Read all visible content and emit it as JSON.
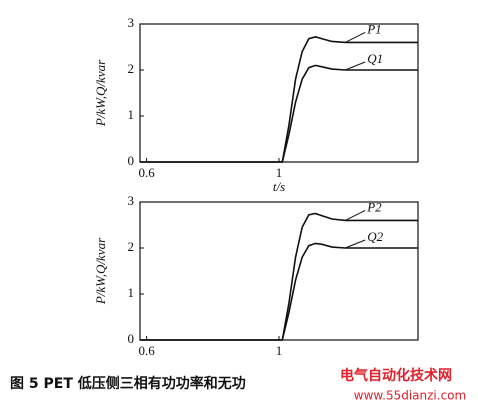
{
  "chart_data": [
    {
      "type": "line",
      "xlabel": "t/s",
      "ylabel": "P/kW,Q/kvar",
      "x": [
        0.58,
        1.0,
        1.01,
        1.03,
        1.05,
        1.07,
        1.09,
        1.11,
        1.13,
        1.16,
        1.2,
        1.25,
        1.42
      ],
      "series": [
        {
          "name": "P1",
          "color": "#111111",
          "values": [
            0,
            0,
            0,
            0.8,
            1.8,
            2.4,
            2.68,
            2.72,
            2.68,
            2.62,
            2.6,
            2.6,
            2.6
          ]
        },
        {
          "name": "Q1",
          "color": "#111111",
          "values": [
            0,
            0,
            0,
            0.6,
            1.3,
            1.8,
            2.05,
            2.1,
            2.07,
            2.02,
            2.0,
            2.0,
            2.0
          ]
        }
      ],
      "xlim": [
        0.58,
        1.42
      ],
      "ylim": [
        0,
        3
      ],
      "xticks": [
        0.6,
        1
      ],
      "yticks": [
        0,
        1,
        2,
        3
      ]
    },
    {
      "type": "line",
      "ylabel": "P/kW,Q/kvar",
      "x": [
        0.58,
        1.0,
        1.01,
        1.03,
        1.05,
        1.07,
        1.09,
        1.11,
        1.13,
        1.16,
        1.2,
        1.25,
        1.42
      ],
      "series": [
        {
          "name": "P2",
          "color": "#111111",
          "values": [
            0,
            0,
            0,
            0.8,
            1.8,
            2.45,
            2.72,
            2.75,
            2.7,
            2.63,
            2.6,
            2.6,
            2.6
          ]
        },
        {
          "name": "Q2",
          "color": "#111111",
          "values": [
            0,
            0,
            0,
            0.6,
            1.3,
            1.8,
            2.05,
            2.1,
            2.08,
            2.02,
            2.0,
            2.0,
            2.0
          ]
        }
      ],
      "xlim": [
        0.58,
        1.42
      ],
      "ylim": [
        0,
        3
      ],
      "xticks": [
        0.6,
        1
      ],
      "yticks": [
        0,
        1,
        2,
        3
      ]
    }
  ],
  "caption": "图 5 PET 低压侧三相有功功率和无功",
  "watermark": [
    "电气自动化技术网",
    "www.55dianzi.com"
  ]
}
